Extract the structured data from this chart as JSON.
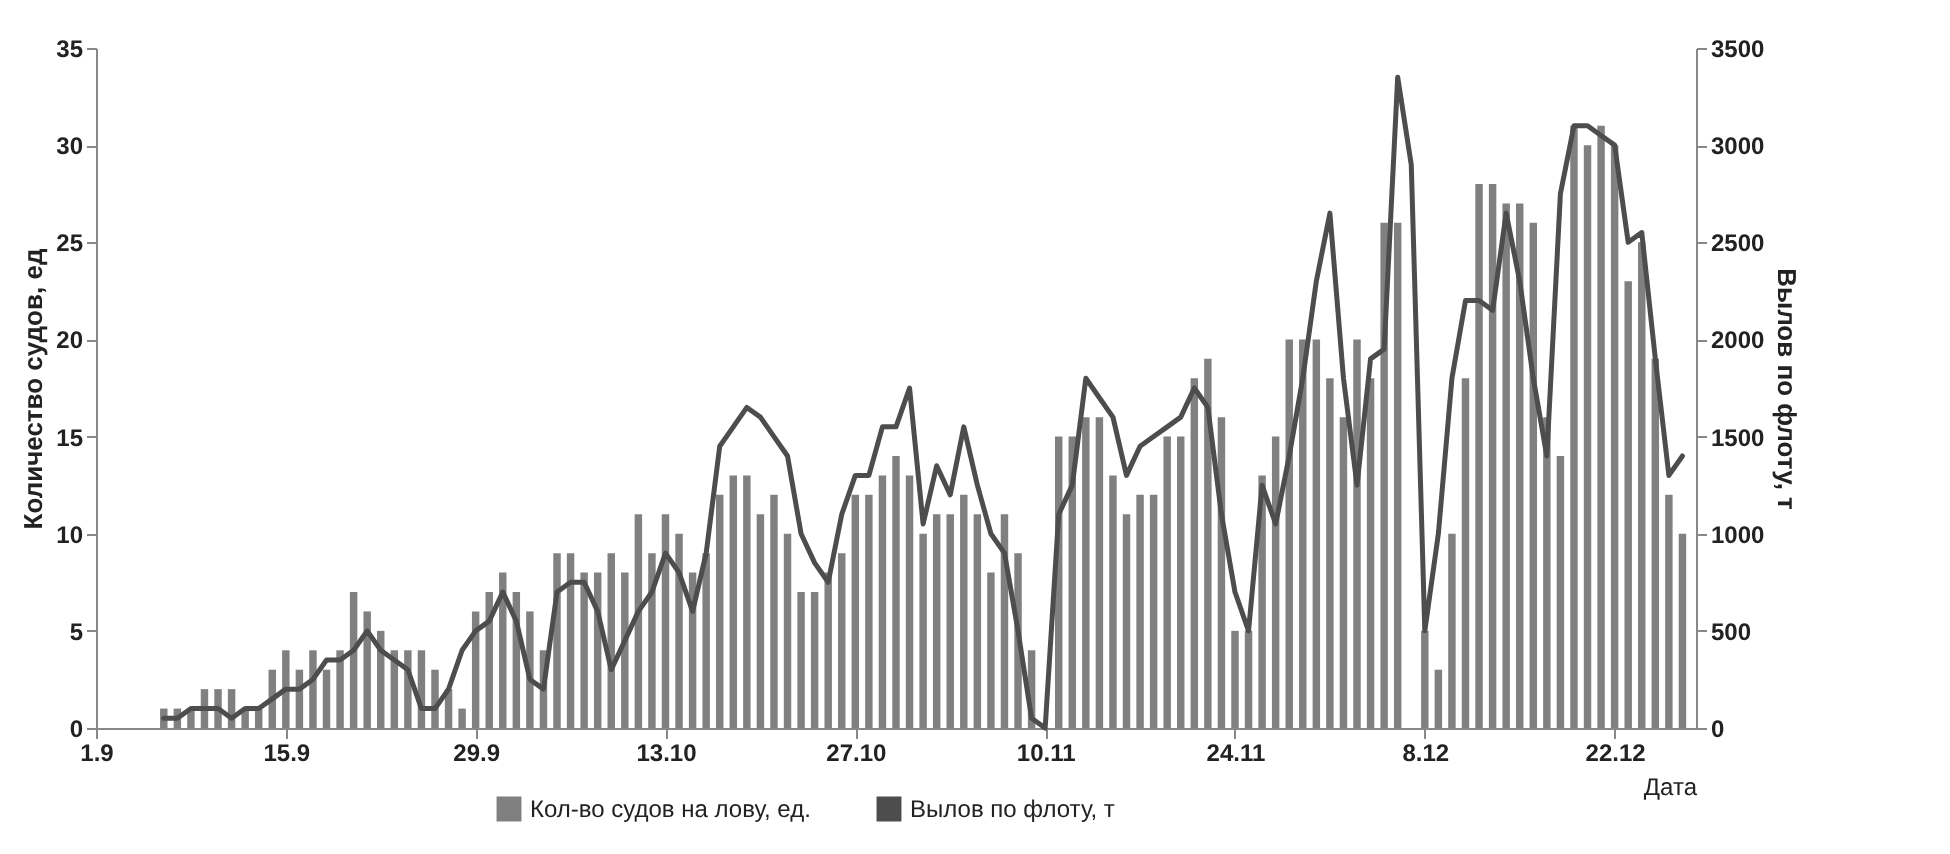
{
  "chart_data": {
    "type": "bar",
    "xlabel": "Дата",
    "ylabel": "Количество судов, ед",
    "y2label": "Вылов по флоту, т",
    "x": [
      "--09-01",
      "--09-02",
      "--09-03",
      "--09-04",
      "--09-05",
      "--09-06",
      "--09-07",
      "--09-08",
      "--09-09",
      "--09-10",
      "--09-11",
      "--09-12",
      "--09-13",
      "--09-14",
      "--09-15",
      "--09-16",
      "--09-17",
      "--09-18",
      "--09-19",
      "--09-20",
      "--09-21",
      "--09-22",
      "--09-23",
      "--09-24",
      "--09-25",
      "--09-26",
      "--09-27",
      "--09-28",
      "--09-29",
      "--09-30",
      "--10-01",
      "--10-02",
      "--10-03",
      "--10-04",
      "--10-05",
      "--10-06",
      "--10-07",
      "--10-08",
      "--10-09",
      "--10-10",
      "--10-11",
      "--10-12",
      "--10-13",
      "--10-14",
      "--10-15",
      "--10-16",
      "--10-17",
      "--10-18",
      "--10-19",
      "--10-20",
      "--10-21",
      "--10-22",
      "--10-23",
      "--10-24",
      "--10-25",
      "--10-26",
      "--10-27",
      "--10-28",
      "--10-29",
      "--10-30",
      "--10-31",
      "--11-01",
      "--11-02",
      "--11-03",
      "--11-04",
      "--11-05",
      "--11-06",
      "--11-07",
      "--11-08",
      "--11-09",
      "--11-10",
      "--11-11",
      "--11-12",
      "--11-13",
      "--11-14",
      "--11-15",
      "--11-16",
      "--11-17",
      "--11-18",
      "--11-19",
      "--11-20",
      "--11-21",
      "--11-22",
      "--11-23",
      "--11-24",
      "--11-25",
      "--11-26",
      "--11-27",
      "--11-28",
      "--11-29",
      "--11-30",
      "--12-01",
      "--12-02",
      "--12-03",
      "--12-04",
      "--12-05",
      "--12-06",
      "--12-07",
      "--12-08",
      "--12-09",
      "--12-10",
      "--12-11",
      "--12-12",
      "--12-13",
      "--12-14",
      "--12-15",
      "--12-16",
      "--12-17",
      "--12-18",
      "--12-19",
      "--12-20",
      "--12-21",
      "--12-22",
      "--12-23",
      "--12-24",
      "--12-25",
      "--12-26",
      "--12-27"
    ],
    "series": [
      {
        "name": "Кол-во судов на лову, ед.",
        "axis": "y",
        "color": "#808080",
        "values": [
          0,
          0,
          0,
          0,
          0,
          1,
          1,
          1,
          2,
          2,
          2,
          1,
          1,
          3,
          4,
          3,
          4,
          3,
          4,
          7,
          6,
          5,
          4,
          4,
          4,
          3,
          2,
          1,
          6,
          7,
          8,
          7,
          6,
          4,
          9,
          9,
          8,
          8,
          9,
          8,
          11,
          9,
          11,
          10,
          8,
          9,
          12,
          13,
          13,
          11,
          12,
          10,
          7,
          7,
          8,
          9,
          12,
          12,
          13,
          14,
          13,
          10,
          11,
          11,
          12,
          11,
          8,
          11,
          9,
          4,
          0,
          15,
          15,
          16,
          16,
          13,
          11,
          12,
          12,
          15,
          15,
          18,
          19,
          16,
          5,
          5,
          13,
          15,
          20,
          20,
          20,
          18,
          16,
          20,
          18,
          26,
          26,
          0,
          5,
          3,
          10,
          18,
          28,
          28,
          27,
          27,
          26,
          16,
          14,
          31,
          30,
          31,
          30,
          23,
          25,
          19,
          12,
          10
        ]
      },
      {
        "name": "Вылов по флоту, т",
        "type": "line",
        "axis": "y2",
        "color": "#4d4d4d",
        "values": [
          null,
          null,
          null,
          null,
          null,
          50,
          50,
          100,
          100,
          100,
          50,
          100,
          100,
          150,
          200,
          200,
          250,
          350,
          350,
          400,
          500,
          400,
          350,
          300,
          100,
          100,
          200,
          400,
          500,
          550,
          700,
          550,
          250,
          200,
          700,
          750,
          750,
          600,
          300,
          450,
          600,
          700,
          900,
          800,
          600,
          900,
          1450,
          1550,
          1650,
          1600,
          1500,
          1400,
          1000,
          850,
          750,
          1100,
          1300,
          1300,
          1550,
          1550,
          1750,
          1050,
          1350,
          1200,
          1550,
          1250,
          1000,
          900,
          500,
          50,
          0,
          1100,
          1250,
          1800,
          1700,
          1600,
          1300,
          1450,
          1500,
          1550,
          1600,
          1750,
          1650,
          1100,
          700,
          500,
          1250,
          1050,
          1400,
          1800,
          2300,
          2650,
          1800,
          1250,
          1900,
          1950,
          3350,
          2900,
          500,
          1000,
          1800,
          2200,
          2200,
          2150,
          2650,
          2300,
          1800,
          1400,
          2750,
          3100,
          3100,
          3050,
          3000,
          2500,
          2550,
          1900,
          1300,
          1400
        ]
      }
    ],
    "xlim": [
      "--09-01",
      "--12-28"
    ],
    "xticks": [
      {
        "value": "--09-01",
        "label": "1.9"
      },
      {
        "value": "--09-15",
        "label": "15.9"
      },
      {
        "value": "--09-29",
        "label": "29.9"
      },
      {
        "value": "--10-13",
        "label": "13.10"
      },
      {
        "value": "--10-27",
        "label": "27.10"
      },
      {
        "value": "--11-10",
        "label": "10.11"
      },
      {
        "value": "--11-24",
        "label": "24.11"
      },
      {
        "value": "--12-08",
        "label": "8.12"
      },
      {
        "value": "--12-22",
        "label": "22.12"
      }
    ],
    "ylim": [
      0,
      35
    ],
    "yticks": [
      0,
      5,
      10,
      15,
      20,
      25,
      30,
      35
    ],
    "y2lim": [
      0,
      3500
    ],
    "y2ticks": [
      0,
      500,
      1000,
      1500,
      2000,
      2500,
      3000,
      3500
    ],
    "grid": false,
    "legend": "bottom"
  }
}
